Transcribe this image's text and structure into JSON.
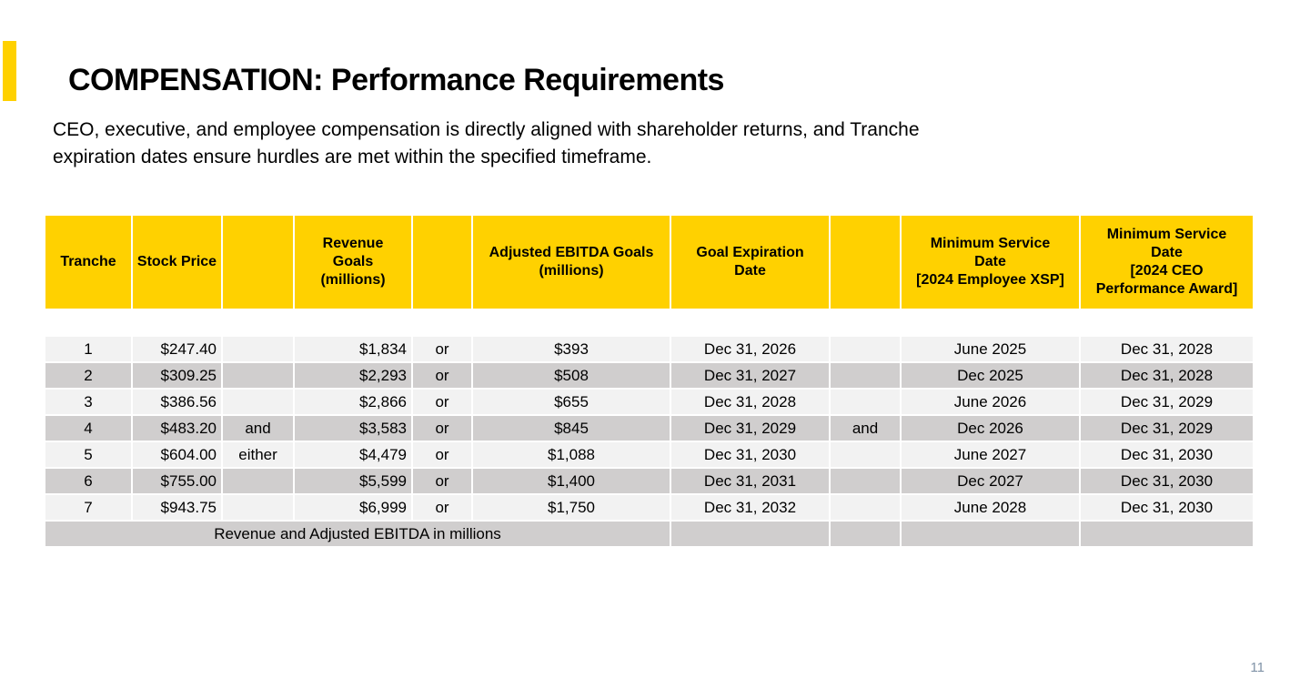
{
  "page": {
    "title": "COMPENSATION: Performance Requirements",
    "subtitle_line1": "CEO, executive, and employee compensation is directly aligned with shareholder returns, and Tranche",
    "subtitle_line2": "expiration dates ensure hurdles are met within the specified timeframe.",
    "page_number": "11"
  },
  "colors": {
    "accent_yellow": "#FFD100",
    "row_light": "#F2F2F2",
    "row_dark": "#D0CECE",
    "page_number": "#8093A7"
  },
  "table": {
    "headers": [
      "Tranche",
      "Stock Price",
      "",
      "Revenue\nGoals\n(millions)",
      "",
      "Adjusted EBITDA Goals\n(millions)",
      "Goal Expiration\nDate",
      "",
      "Minimum Service\nDate\n[2024 Employee XSP]",
      "Minimum Service\nDate\n[2024 CEO\nPerformance Award]"
    ],
    "rows": [
      [
        "1",
        "$247.40",
        "",
        "$1,834",
        "or",
        "$393",
        "Dec 31, 2026",
        "",
        "June 2025",
        "Dec 31, 2028"
      ],
      [
        "2",
        "$309.25",
        "",
        "$2,293",
        "or",
        "$508",
        "Dec 31, 2027",
        "",
        "Dec 2025",
        "Dec 31, 2028"
      ],
      [
        "3",
        "$386.56",
        "",
        "$2,866",
        "or",
        "$655",
        "Dec 31, 2028",
        "",
        "June 2026",
        "Dec 31, 2029"
      ],
      [
        "4",
        "$483.20",
        "and",
        "$3,583",
        "or",
        "$845",
        "Dec 31, 2029",
        "and",
        "Dec 2026",
        "Dec 31, 2029"
      ],
      [
        "5",
        "$604.00",
        "either",
        "$4,479",
        "or",
        "$1,088",
        "Dec 31, 2030",
        "",
        "June 2027",
        "Dec 31, 2030"
      ],
      [
        "6",
        "$755.00",
        "",
        "$5,599",
        "or",
        "$1,400",
        "Dec 31, 2031",
        "",
        "Dec 2027",
        "Dec 31, 2030"
      ],
      [
        "7",
        "$943.75",
        "",
        "$6,999",
        "or",
        "$1,750",
        "Dec 31, 2032",
        "",
        "June 2028",
        "Dec 31, 2030"
      ]
    ],
    "footer": {
      "label": "Revenue and Adjusted EBITDA in millions",
      "label_span": 6,
      "empty_cells": 4
    }
  }
}
